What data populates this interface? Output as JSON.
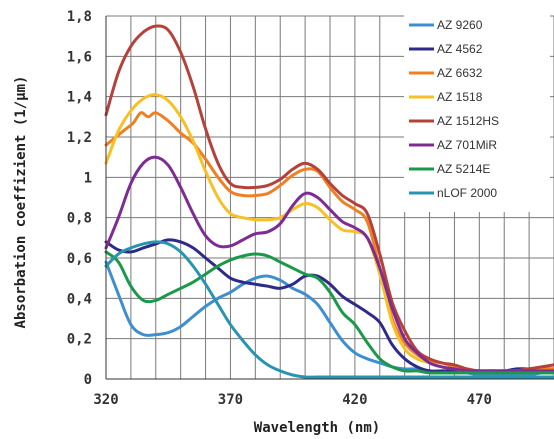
{
  "chart_data": {
    "type": "line",
    "xlabel": "Wavelength (nm)",
    "ylabel": "Absorbation coeffizient (1/µm)",
    "xlim": [
      320,
      500
    ],
    "ylim": [
      0,
      1.8
    ],
    "x_ticks": [
      320,
      370,
      420,
      470
    ],
    "x_tick_labels": [
      "320",
      "370",
      "420",
      "470"
    ],
    "y_ticks": [
      0,
      0.2,
      0.4,
      0.6,
      0.8,
      1,
      1.2,
      1.4,
      1.6,
      1.8
    ],
    "y_tick_labels": [
      "0",
      "0,2",
      "0,4",
      "0,6",
      "0,8",
      "1",
      "1,2",
      "1,4",
      "1,6",
      "1,8"
    ],
    "grid": true,
    "legend_position": "right",
    "series": [
      {
        "name": "AZ 9260",
        "color": "#3d8fd1",
        "x": [
          320,
          325,
          330,
          335,
          340,
          345,
          350,
          355,
          360,
          365,
          370,
          375,
          380,
          385,
          390,
          395,
          400,
          405,
          410,
          415,
          420,
          425,
          430,
          435,
          440,
          445,
          450,
          455,
          460,
          465,
          470,
          475,
          480,
          485,
          490,
          495,
          500
        ],
        "y": [
          0.58,
          0.42,
          0.27,
          0.22,
          0.22,
          0.23,
          0.26,
          0.31,
          0.36,
          0.4,
          0.43,
          0.47,
          0.5,
          0.51,
          0.49,
          0.45,
          0.42,
          0.37,
          0.28,
          0.19,
          0.13,
          0.1,
          0.08,
          0.06,
          0.05,
          0.05,
          0.04,
          0.03,
          0.03,
          0.03,
          0.02,
          0.02,
          0.02,
          0.02,
          0.02,
          0.03,
          0.03
        ]
      },
      {
        "name": "AZ 4562",
        "color": "#2e2a87",
        "x": [
          320,
          325,
          330,
          335,
          340,
          345,
          350,
          355,
          360,
          365,
          370,
          375,
          380,
          385,
          390,
          395,
          400,
          405,
          410,
          415,
          420,
          425,
          430,
          435,
          440,
          445,
          450,
          455,
          460,
          465,
          470,
          475,
          480,
          485,
          490,
          495,
          500
        ],
        "y": [
          0.68,
          0.64,
          0.63,
          0.65,
          0.67,
          0.69,
          0.68,
          0.65,
          0.6,
          0.55,
          0.5,
          0.48,
          0.47,
          0.46,
          0.45,
          0.47,
          0.51,
          0.51,
          0.47,
          0.41,
          0.37,
          0.33,
          0.28,
          0.17,
          0.1,
          0.06,
          0.04,
          0.04,
          0.04,
          0.04,
          0.04,
          0.04,
          0.04,
          0.05,
          0.05,
          0.05,
          0.05
        ]
      },
      {
        "name": "AZ 6632",
        "color": "#f07f22",
        "x": [
          320,
          325,
          328,
          331,
          334,
          337,
          340,
          345,
          350,
          355,
          360,
          365,
          370,
          375,
          380,
          385,
          390,
          395,
          400,
          405,
          410,
          415,
          420,
          425,
          430,
          435,
          440,
          445,
          450,
          455,
          460,
          465,
          470,
          475,
          480,
          485,
          490,
          495,
          500
        ],
        "y": [
          1.16,
          1.21,
          1.24,
          1.27,
          1.32,
          1.3,
          1.32,
          1.28,
          1.22,
          1.17,
          1.09,
          1.0,
          0.93,
          0.91,
          0.91,
          0.92,
          0.96,
          1.01,
          1.04,
          1.03,
          0.95,
          0.88,
          0.84,
          0.78,
          0.55,
          0.3,
          0.18,
          0.12,
          0.09,
          0.08,
          0.06,
          0.05,
          0.04,
          0.04,
          0.04,
          0.04,
          0.05,
          0.05,
          0.05
        ]
      },
      {
        "name": "AZ 1518",
        "color": "#f7c125",
        "x": [
          320,
          325,
          330,
          335,
          340,
          345,
          350,
          355,
          360,
          365,
          370,
          375,
          380,
          385,
          390,
          395,
          400,
          405,
          410,
          415,
          420,
          425,
          430,
          435,
          440,
          445,
          450,
          455,
          460,
          465,
          470,
          475,
          480,
          485,
          490,
          495,
          500
        ],
        "y": [
          1.07,
          1.23,
          1.33,
          1.39,
          1.41,
          1.38,
          1.3,
          1.18,
          1.03,
          0.9,
          0.82,
          0.8,
          0.79,
          0.79,
          0.8,
          0.84,
          0.87,
          0.85,
          0.79,
          0.74,
          0.73,
          0.7,
          0.52,
          0.28,
          0.15,
          0.1,
          0.08,
          0.06,
          0.05,
          0.04,
          0.04,
          0.04,
          0.04,
          0.04,
          0.04,
          0.04,
          0.04
        ]
      },
      {
        "name": "AZ 1512HS",
        "color": "#b5413b",
        "x": [
          320,
          325,
          330,
          335,
          340,
          345,
          350,
          355,
          360,
          365,
          370,
          375,
          380,
          385,
          390,
          395,
          400,
          405,
          410,
          415,
          420,
          425,
          430,
          435,
          440,
          445,
          450,
          455,
          460,
          465,
          470,
          475,
          480,
          485,
          490,
          495,
          500
        ],
        "y": [
          1.31,
          1.52,
          1.65,
          1.72,
          1.75,
          1.73,
          1.62,
          1.45,
          1.24,
          1.07,
          0.97,
          0.95,
          0.95,
          0.96,
          0.99,
          1.04,
          1.07,
          1.04,
          0.97,
          0.91,
          0.87,
          0.82,
          0.62,
          0.38,
          0.24,
          0.14,
          0.1,
          0.08,
          0.07,
          0.05,
          0.04,
          0.04,
          0.04,
          0.04,
          0.05,
          0.06,
          0.07
        ]
      },
      {
        "name": "AZ 701MiR",
        "color": "#7e2c95",
        "x": [
          320,
          325,
          330,
          335,
          340,
          345,
          350,
          355,
          360,
          365,
          370,
          375,
          380,
          385,
          390,
          395,
          400,
          405,
          410,
          415,
          420,
          425,
          430,
          435,
          440,
          445,
          450,
          455,
          460,
          465,
          470,
          475,
          480,
          485,
          490,
          495,
          500
        ],
        "y": [
          0.65,
          0.8,
          0.97,
          1.07,
          1.1,
          1.06,
          0.95,
          0.82,
          0.71,
          0.66,
          0.66,
          0.69,
          0.72,
          0.73,
          0.77,
          0.86,
          0.92,
          0.9,
          0.84,
          0.78,
          0.75,
          0.7,
          0.55,
          0.35,
          0.2,
          0.13,
          0.08,
          0.06,
          0.05,
          0.04,
          0.04,
          0.04,
          0.04,
          0.04,
          0.04,
          0.04,
          0.04
        ]
      },
      {
        "name": "AZ 5214E",
        "color": "#1a9a48",
        "x": [
          320,
          325,
          330,
          335,
          340,
          345,
          350,
          355,
          360,
          365,
          370,
          375,
          380,
          385,
          390,
          395,
          400,
          405,
          410,
          415,
          420,
          425,
          430,
          435,
          440,
          445,
          450,
          455,
          460,
          465,
          470,
          475,
          480,
          485,
          490,
          495,
          500
        ],
        "y": [
          0.63,
          0.58,
          0.46,
          0.39,
          0.39,
          0.42,
          0.45,
          0.48,
          0.52,
          0.56,
          0.59,
          0.61,
          0.62,
          0.61,
          0.58,
          0.55,
          0.52,
          0.5,
          0.43,
          0.33,
          0.27,
          0.18,
          0.1,
          0.06,
          0.04,
          0.04,
          0.03,
          0.03,
          0.03,
          0.03,
          0.03,
          0.03,
          0.03,
          0.03,
          0.03,
          0.03,
          0.03
        ]
      },
      {
        "name": "nLOF 2000",
        "color": "#2994b0",
        "x": [
          320,
          325,
          330,
          335,
          340,
          345,
          350,
          355,
          360,
          365,
          370,
          375,
          380,
          385,
          390,
          395,
          400,
          405,
          410,
          415,
          420,
          425,
          430,
          440,
          450,
          460,
          470,
          480,
          490,
          500
        ],
        "y": [
          0.56,
          0.62,
          0.65,
          0.67,
          0.68,
          0.67,
          0.63,
          0.56,
          0.47,
          0.37,
          0.27,
          0.19,
          0.12,
          0.07,
          0.04,
          0.02,
          0.01,
          0.01,
          0.01,
          0.01,
          0.01,
          0.01,
          0.01,
          0.01,
          0.01,
          0.01,
          0.01,
          0.01,
          0.01,
          0.01
        ]
      }
    ]
  }
}
